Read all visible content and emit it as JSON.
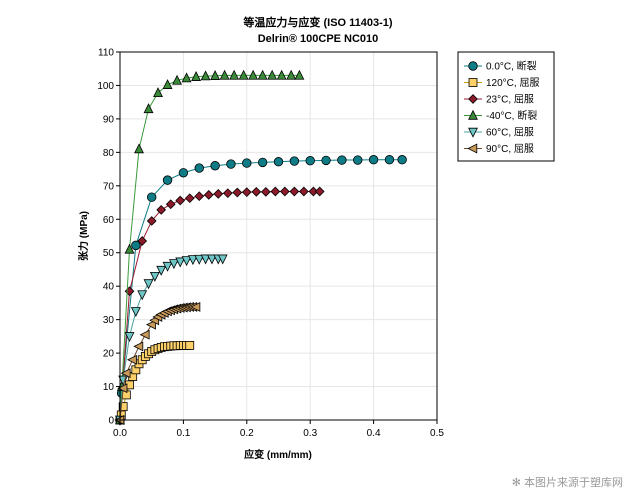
{
  "chart_data": {
    "type": "line",
    "title": "等温应力与应变 (ISO 11403-1)",
    "subtitle": "Delrin® 100CPE NC010",
    "xlabel": "应变 (mm/mm)",
    "ylabel": "张力 (MPa)",
    "xlim": [
      0,
      0.5
    ],
    "ylim": [
      0,
      110
    ],
    "xticks": [
      0,
      0.1,
      0.2,
      0.3,
      0.4,
      0.5
    ],
    "xtick_labels": [
      "0.0",
      "0.1",
      "0.2",
      "0.3",
      "0.4",
      "0.5"
    ],
    "yticks": [
      0,
      10,
      20,
      30,
      40,
      50,
      60,
      70,
      80,
      90,
      100,
      110
    ],
    "ytick_labels": [
      "0",
      "10",
      "20",
      "30",
      "40",
      "50",
      "60",
      "70",
      "80",
      "90",
      "100",
      "110"
    ],
    "grid": true,
    "legend_position": "outside-right-top",
    "series": [
      {
        "name": "0.0°C, 断裂",
        "marker": "circle",
        "line_color": "#0e7c86",
        "fill_color": "#0e7c86",
        "points": [
          [
            0.0,
            0.0
          ],
          [
            0.0025,
            8.0
          ],
          [
            0.025,
            52.2
          ],
          [
            0.05,
            66.6
          ],
          [
            0.075,
            71.7
          ],
          [
            0.1,
            73.9
          ],
          [
            0.125,
            75.3
          ],
          [
            0.15,
            76.0
          ],
          [
            0.175,
            76.5
          ],
          [
            0.2,
            76.8
          ],
          [
            0.225,
            77.0
          ],
          [
            0.25,
            77.2
          ],
          [
            0.275,
            77.4
          ],
          [
            0.3,
            77.5
          ],
          [
            0.325,
            77.6
          ],
          [
            0.35,
            77.7
          ],
          [
            0.375,
            77.7
          ],
          [
            0.4,
            77.8
          ],
          [
            0.425,
            77.8
          ],
          [
            0.445,
            77.8
          ]
        ]
      },
      {
        "name": "120°C, 屈服",
        "marker": "square",
        "line_color": "#c8a000",
        "fill_color": "#fdd06a",
        "points": [
          [
            0.0,
            0.0
          ],
          [
            0.002,
            1.5
          ],
          [
            0.005,
            4.0
          ],
          [
            0.01,
            7.5
          ],
          [
            0.015,
            10.5
          ],
          [
            0.02,
            13.0
          ],
          [
            0.025,
            15.0
          ],
          [
            0.03,
            16.8
          ],
          [
            0.035,
            18.0
          ],
          [
            0.04,
            19.0
          ],
          [
            0.045,
            19.8
          ],
          [
            0.05,
            20.5
          ],
          [
            0.055,
            21.0
          ],
          [
            0.06,
            21.4
          ],
          [
            0.065,
            21.7
          ],
          [
            0.07,
            21.9
          ],
          [
            0.075,
            22.0
          ],
          [
            0.08,
            22.1
          ],
          [
            0.085,
            22.2
          ],
          [
            0.09,
            22.2
          ],
          [
            0.095,
            22.3
          ],
          [
            0.1,
            22.3
          ],
          [
            0.105,
            22.3
          ],
          [
            0.11,
            22.3
          ]
        ]
      },
      {
        "name": "23°C, 屈服",
        "marker": "diamond",
        "line_color": "#9b1b30",
        "fill_color": "#8b1a2b",
        "points": [
          [
            0.0,
            0.0
          ],
          [
            0.015,
            38.5
          ],
          [
            0.035,
            53.5
          ],
          [
            0.05,
            59.5
          ],
          [
            0.065,
            62.8
          ],
          [
            0.08,
            64.5
          ],
          [
            0.095,
            65.6
          ],
          [
            0.11,
            66.3
          ],
          [
            0.125,
            66.9
          ],
          [
            0.14,
            67.3
          ],
          [
            0.155,
            67.6
          ],
          [
            0.17,
            67.8
          ],
          [
            0.185,
            68.0
          ],
          [
            0.2,
            68.1
          ],
          [
            0.215,
            68.2
          ],
          [
            0.23,
            68.2
          ],
          [
            0.245,
            68.3
          ],
          [
            0.26,
            68.3
          ],
          [
            0.275,
            68.3
          ],
          [
            0.29,
            68.3
          ],
          [
            0.305,
            68.3
          ],
          [
            0.315,
            68.3
          ]
        ]
      },
      {
        "name": "-40°C, 断裂",
        "marker": "triangle-up",
        "line_color": "#3a9a3a",
        "fill_color": "#3a8a3a",
        "points": [
          [
            0.0,
            0.0
          ],
          [
            0.003,
            10.0
          ],
          [
            0.015,
            51.0
          ],
          [
            0.03,
            81.0
          ],
          [
            0.045,
            93.0
          ],
          [
            0.06,
            97.8
          ],
          [
            0.075,
            100.2
          ],
          [
            0.09,
            101.5
          ],
          [
            0.105,
            102.2
          ],
          [
            0.12,
            102.6
          ],
          [
            0.135,
            102.8
          ],
          [
            0.15,
            102.9
          ],
          [
            0.165,
            103.0
          ],
          [
            0.18,
            103.0
          ],
          [
            0.195,
            103.0
          ],
          [
            0.21,
            103.0
          ],
          [
            0.225,
            103.0
          ],
          [
            0.24,
            103.0
          ],
          [
            0.255,
            103.0
          ],
          [
            0.27,
            103.0
          ],
          [
            0.283,
            103.0
          ]
        ]
      },
      {
        "name": "60°C, 屈服",
        "marker": "triangle-down",
        "line_color": "#4aa0a0",
        "fill_color": "#6fc6c6",
        "points": [
          [
            0.0,
            0.0
          ],
          [
            0.005,
            12.0
          ],
          [
            0.015,
            25.0
          ],
          [
            0.025,
            32.5
          ],
          [
            0.035,
            37.5
          ],
          [
            0.045,
            40.8
          ],
          [
            0.055,
            43.0
          ],
          [
            0.065,
            44.8
          ],
          [
            0.075,
            46.0
          ],
          [
            0.085,
            46.8
          ],
          [
            0.095,
            47.3
          ],
          [
            0.105,
            47.7
          ],
          [
            0.115,
            48.0
          ],
          [
            0.125,
            48.1
          ],
          [
            0.135,
            48.2
          ],
          [
            0.145,
            48.2
          ],
          [
            0.155,
            48.2
          ],
          [
            0.162,
            48.2
          ]
        ]
      },
      {
        "name": "90°C, 屈服",
        "marker": "triangle-left",
        "line_color": "#6b4a2a",
        "fill_color": "#c89a5a",
        "points": [
          [
            0.0,
            0.0
          ],
          [
            0.005,
            9.5
          ],
          [
            0.01,
            14.0
          ],
          [
            0.02,
            18.0
          ],
          [
            0.03,
            22.0
          ],
          [
            0.04,
            25.5
          ],
          [
            0.05,
            28.5
          ],
          [
            0.055,
            29.8
          ],
          [
            0.06,
            30.8
          ],
          [
            0.065,
            31.5
          ],
          [
            0.07,
            32.0
          ],
          [
            0.075,
            32.5
          ],
          [
            0.08,
            32.8
          ],
          [
            0.085,
            33.1
          ],
          [
            0.09,
            33.3
          ],
          [
            0.095,
            33.5
          ],
          [
            0.1,
            33.6
          ],
          [
            0.105,
            33.7
          ],
          [
            0.11,
            33.8
          ],
          [
            0.115,
            33.8
          ],
          [
            0.12,
            33.8
          ]
        ]
      }
    ]
  },
  "watermark": {
    "icon": "asterisk-icon",
    "text": "本图片来源于塑库网"
  }
}
